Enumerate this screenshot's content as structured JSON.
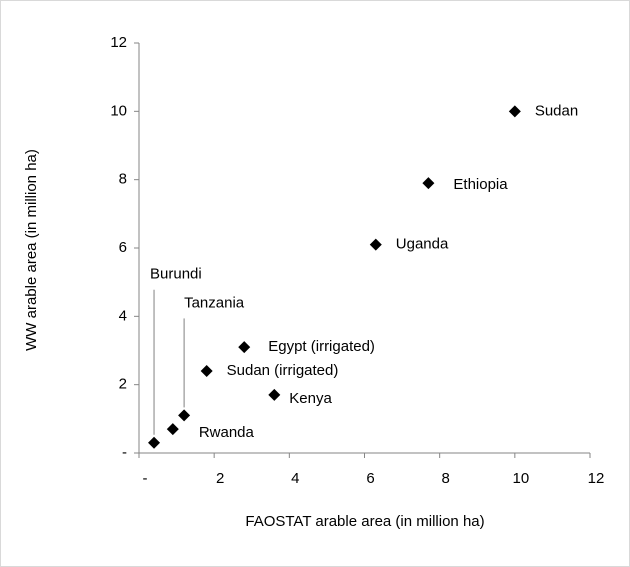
{
  "chart_data": {
    "type": "scatter",
    "x_label": "FAOSTAT  arable area (in million ha)",
    "y_label": "WW arable area  (in million ha)",
    "labels": [
      "Sudan",
      "Ethiopia",
      "Uganda",
      "Egypt (irrigated)",
      "Sudan (irrigated)",
      "Kenya",
      "Tanzania",
      "Rwanda",
      "Burundi"
    ],
    "x": [
      10.0,
      7.7,
      6.3,
      2.8,
      1.8,
      3.6,
      1.2,
      0.9,
      0.4
    ],
    "values": [
      10.0,
      7.9,
      6.1,
      3.1,
      2.4,
      1.7,
      1.1,
      0.7,
      0.3
    ],
    "color": "#000000",
    "xlim": [
      0,
      12
    ],
    "ylim": [
      0,
      12
    ],
    "xticks": [
      {
        "value": 0,
        "label": "-"
      },
      2,
      4,
      6,
      8,
      10,
      12
    ],
    "yticks": [
      {
        "value": 0,
        "label": "-"
      },
      2,
      4,
      6,
      8,
      10,
      12
    ]
  }
}
